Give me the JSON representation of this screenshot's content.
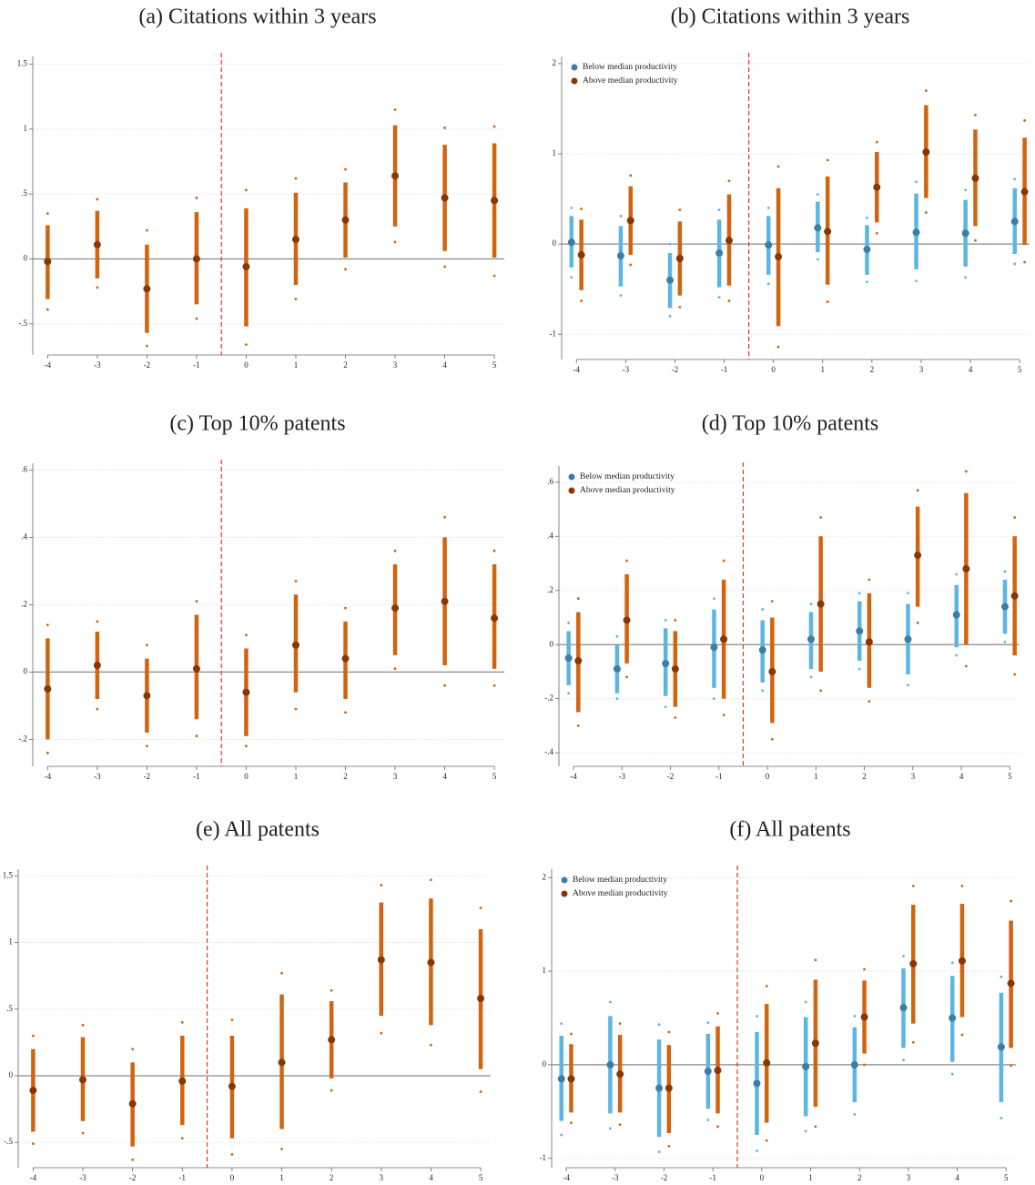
{
  "chart_data": [
    {
      "type": "errorbar",
      "title": "(a) Citations within 3 years",
      "x": [
        -4,
        -3,
        -2,
        -1,
        0,
        1,
        2,
        3,
        4,
        5
      ],
      "xlim": [
        -4.3,
        5.2
      ],
      "ylim": [
        -0.74,
        1.56
      ],
      "yticks": [
        {
          "value": -0.5,
          "label": "-.5"
        },
        0,
        {
          "value": 0.5,
          "label": ".5"
        },
        1,
        1.5
      ],
      "grid": true,
      "reference_y": 0,
      "event_x": -0.5,
      "series": [
        {
          "color": "#d2640f",
          "point_color": "#8a3508",
          "values": [
            -0.02,
            0.11,
            -0.23,
            0.0,
            -0.06,
            0.15,
            0.3,
            0.64,
            0.47,
            0.45
          ],
          "ci_low": [
            -0.31,
            -0.15,
            -0.57,
            -0.35,
            -0.52,
            -0.2,
            0.01,
            0.25,
            0.06,
            0.01
          ],
          "ci_high": [
            0.26,
            0.37,
            0.11,
            0.36,
            0.39,
            0.51,
            0.59,
            1.03,
            0.88,
            0.89
          ],
          "ci95_low": [
            -0.39,
            -0.22,
            -0.67,
            -0.46,
            -0.66,
            -0.31,
            -0.08,
            0.13,
            -0.06,
            -0.13
          ],
          "ci95_high": [
            0.35,
            0.46,
            0.22,
            0.47,
            0.53,
            0.62,
            0.69,
            1.15,
            1.01,
            1.02
          ]
        }
      ]
    },
    {
      "type": "errorbar",
      "title": "(b) Citations within 3 years",
      "x": [
        -4,
        -3,
        -2,
        -1,
        0,
        1,
        2,
        3,
        4,
        5
      ],
      "xlim": [
        -4.3,
        5.2
      ],
      "ylim": [
        -1.28,
        2.08
      ],
      "yticks": [
        -1,
        0,
        1,
        2
      ],
      "grid": true,
      "reference_y": 0,
      "event_x": -0.5,
      "legend": "top-left",
      "series": [
        {
          "name": "Below median productivity",
          "color": "#5bb6e2",
          "point_color": "#3a7ea8",
          "values": [
            0.02,
            -0.13,
            -0.4,
            -0.1,
            -0.01,
            0.18,
            -0.06,
            0.13,
            0.12,
            0.25
          ],
          "ci_low": [
            -0.26,
            -0.47,
            -0.71,
            -0.48,
            -0.34,
            -0.09,
            -0.34,
            -0.28,
            -0.25,
            -0.11
          ],
          "ci_high": [
            0.31,
            0.2,
            -0.1,
            0.27,
            0.31,
            0.47,
            0.21,
            0.56,
            0.49,
            0.62
          ],
          "ci95_low": [
            -0.37,
            -0.57,
            -0.8,
            -0.59,
            -0.44,
            -0.17,
            -0.42,
            -0.41,
            -0.37,
            -0.22
          ],
          "ci95_high": [
            0.4,
            0.31,
            0.0,
            0.38,
            0.4,
            0.55,
            0.29,
            0.69,
            0.6,
            0.72
          ]
        },
        {
          "name": "Above median productivity",
          "color": "#d2640f",
          "point_color": "#8a3508",
          "values": [
            -0.12,
            0.26,
            -0.16,
            0.04,
            -0.14,
            0.14,
            0.63,
            1.02,
            0.73,
            0.58
          ],
          "ci_low": [
            -0.51,
            -0.12,
            -0.57,
            -0.46,
            -0.91,
            -0.45,
            0.24,
            0.51,
            0.2,
            -0.01
          ],
          "ci_high": [
            0.27,
            0.64,
            0.25,
            0.55,
            0.62,
            0.75,
            1.02,
            1.54,
            1.27,
            1.18
          ],
          "ci95_low": [
            -0.63,
            -0.23,
            -0.7,
            -0.63,
            -1.14,
            -0.64,
            0.12,
            0.35,
            0.04,
            -0.2
          ],
          "ci95_high": [
            0.39,
            0.76,
            0.38,
            0.7,
            0.86,
            0.93,
            1.13,
            1.7,
            1.43,
            1.37
          ]
        }
      ]
    },
    {
      "type": "errorbar",
      "title": "(c) Top 10% patents",
      "x": [
        -4,
        -3,
        -2,
        -1,
        0,
        1,
        2,
        3,
        4,
        5
      ],
      "xlim": [
        -4.3,
        5.2
      ],
      "ylim": [
        -0.28,
        0.62
      ],
      "yticks": [
        {
          "value": -0.2,
          "label": "-.2"
        },
        0,
        {
          "value": 0.2,
          "label": ".2"
        },
        {
          "value": 0.4,
          "label": ".4"
        },
        {
          "value": 0.6,
          "label": ".6"
        }
      ],
      "grid": true,
      "reference_y": 0,
      "event_x": -0.5,
      "series": [
        {
          "color": "#d2640f",
          "point_color": "#8a3508",
          "values": [
            -0.05,
            0.02,
            -0.07,
            0.01,
            -0.06,
            0.08,
            0.04,
            0.19,
            0.21,
            0.16
          ],
          "ci_low": [
            -0.2,
            -0.08,
            -0.18,
            -0.14,
            -0.19,
            -0.06,
            -0.08,
            0.05,
            0.02,
            0.01
          ],
          "ci_high": [
            0.1,
            0.12,
            0.04,
            0.17,
            0.07,
            0.23,
            0.15,
            0.32,
            0.4,
            0.32
          ],
          "ci95_low": [
            -0.24,
            -0.11,
            -0.22,
            -0.19,
            -0.22,
            -0.11,
            -0.12,
            0.01,
            -0.04,
            -0.04
          ],
          "ci95_high": [
            0.14,
            0.15,
            0.08,
            0.21,
            0.11,
            0.27,
            0.19,
            0.36,
            0.46,
            0.36
          ]
        }
      ]
    },
    {
      "type": "errorbar",
      "title": "(d) Top 10% patents",
      "x": [
        -4,
        -3,
        -2,
        -1,
        0,
        1,
        2,
        3,
        4,
        5
      ],
      "xlim": [
        -4.3,
        5.2
      ],
      "ylim": [
        -0.45,
        0.66
      ],
      "yticks": [
        {
          "value": -0.4,
          "label": "-.4"
        },
        {
          "value": -0.2,
          "label": "-.2"
        },
        0,
        {
          "value": 0.2,
          "label": ".2"
        },
        {
          "value": 0.4,
          "label": ".4"
        },
        {
          "value": 0.6,
          "label": ".6"
        }
      ],
      "grid": true,
      "reference_y": 0,
      "event_x": -0.5,
      "legend": "top-left",
      "series": [
        {
          "name": "Below median productivity",
          "color": "#5bb6e2",
          "point_color": "#3a7ea8",
          "values": [
            -0.05,
            -0.09,
            -0.07,
            -0.01,
            -0.02,
            0.02,
            0.05,
            0.02,
            0.11,
            0.14
          ],
          "ci_low": [
            -0.15,
            -0.18,
            -0.19,
            -0.16,
            -0.14,
            -0.09,
            -0.06,
            -0.11,
            -0.01,
            0.04
          ],
          "ci_high": [
            0.05,
            0.0,
            0.06,
            0.13,
            0.09,
            0.12,
            0.16,
            0.15,
            0.22,
            0.24
          ],
          "ci95_low": [
            -0.18,
            -0.2,
            -0.23,
            -0.2,
            -0.17,
            -0.12,
            -0.09,
            -0.15,
            -0.04,
            0.01
          ],
          "ci95_high": [
            0.08,
            0.03,
            0.09,
            0.17,
            0.13,
            0.15,
            0.19,
            0.19,
            0.26,
            0.27
          ]
        },
        {
          "name": "Above median productivity",
          "color": "#d2640f",
          "point_color": "#8a3508",
          "values": [
            -0.06,
            0.09,
            -0.09,
            0.02,
            -0.1,
            0.15,
            0.01,
            0.33,
            0.28,
            0.18
          ],
          "ci_low": [
            -0.25,
            -0.07,
            -0.23,
            -0.2,
            -0.29,
            -0.1,
            -0.16,
            0.14,
            0.0,
            -0.04
          ],
          "ci_high": [
            0.12,
            0.26,
            0.05,
            0.24,
            0.1,
            0.4,
            0.19,
            0.51,
            0.56,
            0.4
          ],
          "ci95_low": [
            -0.3,
            -0.12,
            -0.27,
            -0.26,
            -0.35,
            -0.17,
            -0.21,
            0.08,
            -0.08,
            -0.11
          ],
          "ci95_high": [
            0.17,
            0.31,
            0.09,
            0.31,
            0.16,
            0.47,
            0.24,
            0.57,
            0.64,
            0.47
          ]
        }
      ]
    },
    {
      "type": "errorbar",
      "title": "(e) All patents",
      "x": [
        -4,
        -3,
        -2,
        -1,
        0,
        1,
        2,
        3,
        4,
        5
      ],
      "xlim": [
        -4.3,
        5.2
      ],
      "ylim": [
        -0.69,
        1.55
      ],
      "yticks": [
        {
          "value": -0.5,
          "label": "-.5"
        },
        0,
        {
          "value": 0.5,
          "label": ".5"
        },
        1,
        1.5
      ],
      "grid": true,
      "reference_y": 0,
      "event_x": -0.5,
      "series": [
        {
          "color": "#d2640f",
          "point_color": "#8a3508",
          "values": [
            -0.11,
            -0.03,
            -0.21,
            -0.04,
            -0.08,
            0.1,
            0.27,
            0.87,
            0.85,
            0.58
          ],
          "ci_low": [
            -0.42,
            -0.34,
            -0.53,
            -0.37,
            -0.47,
            -0.4,
            -0.02,
            0.45,
            0.38,
            0.05
          ],
          "ci_high": [
            0.2,
            0.29,
            0.1,
            0.3,
            0.3,
            0.61,
            0.56,
            1.3,
            1.33,
            1.1
          ],
          "ci95_low": [
            -0.51,
            -0.43,
            -0.63,
            -0.47,
            -0.59,
            -0.55,
            -0.11,
            0.32,
            0.23,
            -0.12
          ],
          "ci95_high": [
            0.3,
            0.38,
            0.2,
            0.4,
            0.42,
            0.77,
            0.64,
            1.43,
            1.47,
            1.26
          ]
        }
      ]
    },
    {
      "type": "errorbar",
      "title": "(f) All patents",
      "x": [
        -4,
        -3,
        -2,
        -1,
        0,
        1,
        2,
        3,
        4,
        5
      ],
      "xlim": [
        -4.3,
        5.2
      ],
      "ylim": [
        -1.1,
        2.09
      ],
      "yticks": [
        -1,
        0,
        1,
        2
      ],
      "grid": true,
      "reference_y": 0,
      "event_x": -0.5,
      "legend": "top-left",
      "series": [
        {
          "name": "Below median productivity",
          "color": "#5bb6e2",
          "point_color": "#3a7ea8",
          "values": [
            -0.15,
            0.0,
            -0.25,
            -0.07,
            -0.2,
            -0.02,
            0.0,
            0.61,
            0.5,
            0.19
          ],
          "ci_low": [
            -0.6,
            -0.52,
            -0.77,
            -0.47,
            -0.75,
            -0.55,
            -0.4,
            0.18,
            0.03,
            -0.4
          ],
          "ci_high": [
            0.31,
            0.52,
            0.27,
            0.33,
            0.35,
            0.51,
            0.4,
            1.03,
            0.95,
            0.77
          ],
          "ci95_low": [
            -0.75,
            -0.68,
            -0.93,
            -0.59,
            -0.92,
            -0.71,
            -0.53,
            0.05,
            -0.1,
            -0.57
          ],
          "ci95_high": [
            0.44,
            0.67,
            0.43,
            0.45,
            0.52,
            0.67,
            0.52,
            1.16,
            1.09,
            0.94
          ]
        },
        {
          "name": "Above median productivity",
          "color": "#d2640f",
          "point_color": "#8a3508",
          "values": [
            -0.15,
            -0.1,
            -0.25,
            -0.06,
            0.02,
            0.23,
            0.51,
            1.08,
            1.11,
            0.87
          ],
          "ci_low": [
            -0.51,
            -0.51,
            -0.73,
            -0.52,
            -0.62,
            -0.45,
            0.12,
            0.44,
            0.51,
            0.18
          ],
          "ci_high": [
            0.22,
            0.32,
            0.21,
            0.41,
            0.65,
            0.91,
            0.9,
            1.71,
            1.72,
            1.54
          ],
          "ci95_low": [
            -0.62,
            -0.64,
            -0.87,
            -0.66,
            -0.81,
            -0.66,
            0.0,
            0.24,
            0.32,
            -0.01
          ],
          "ci95_high": [
            0.33,
            0.44,
            0.35,
            0.55,
            0.84,
            1.12,
            1.02,
            1.91,
            1.91,
            1.75
          ]
        }
      ]
    }
  ]
}
